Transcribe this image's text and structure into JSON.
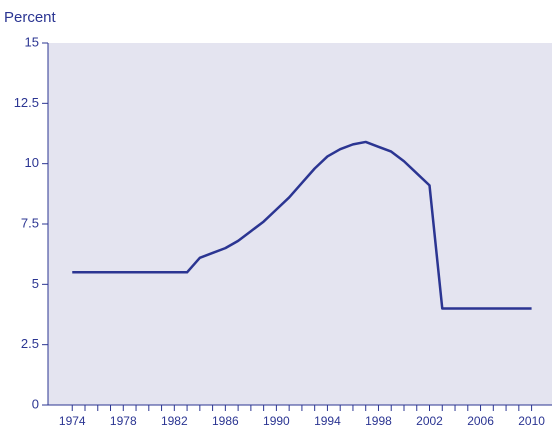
{
  "chart_data": {
    "type": "line",
    "y_label": "Percent",
    "x": [
      1974,
      1975,
      1976,
      1977,
      1978,
      1979,
      1980,
      1981,
      1982,
      1983,
      1984,
      1985,
      1986,
      1987,
      1988,
      1989,
      1990,
      1991,
      1992,
      1993,
      1994,
      1995,
      1996,
      1997,
      1998,
      1999,
      2000,
      2001,
      2002,
      2003,
      2004,
      2005,
      2006,
      2007,
      2008,
      2009,
      2010
    ],
    "series": [
      {
        "color": "#2b3592",
        "values": [
          5.5,
          5.5,
          5.5,
          5.5,
          5.5,
          5.5,
          5.5,
          5.5,
          5.5,
          5.5,
          6.1,
          6.3,
          6.5,
          6.8,
          7.2,
          7.6,
          8.1,
          8.6,
          9.2,
          9.8,
          10.3,
          10.6,
          10.8,
          10.9,
          10.7,
          10.5,
          10.1,
          9.6,
          9.1,
          4.0,
          4.0,
          4.0,
          4.0,
          4.0,
          4.0,
          4.0,
          4.0
        ]
      }
    ],
    "xlim": [
      1972.1,
      2011.6
    ],
    "xticks": [
      1974,
      1978,
      1982,
      1986,
      1990,
      1994,
      1998,
      2002,
      2006,
      2010
    ],
    "xminorticks": [
      1975,
      1976,
      1977,
      1979,
      1980,
      1981,
      1983,
      1984,
      1985,
      1987,
      1988,
      1989,
      1991,
      1992,
      1993,
      1995,
      1996,
      1997,
      1999,
      2000,
      2001,
      2003,
      2004,
      2005,
      2007,
      2008,
      2009
    ],
    "ylim": [
      0,
      15
    ],
    "yticks": [
      0,
      2.5,
      5,
      7.5,
      10,
      12.5,
      15
    ],
    "background": "#e4e4f0"
  }
}
